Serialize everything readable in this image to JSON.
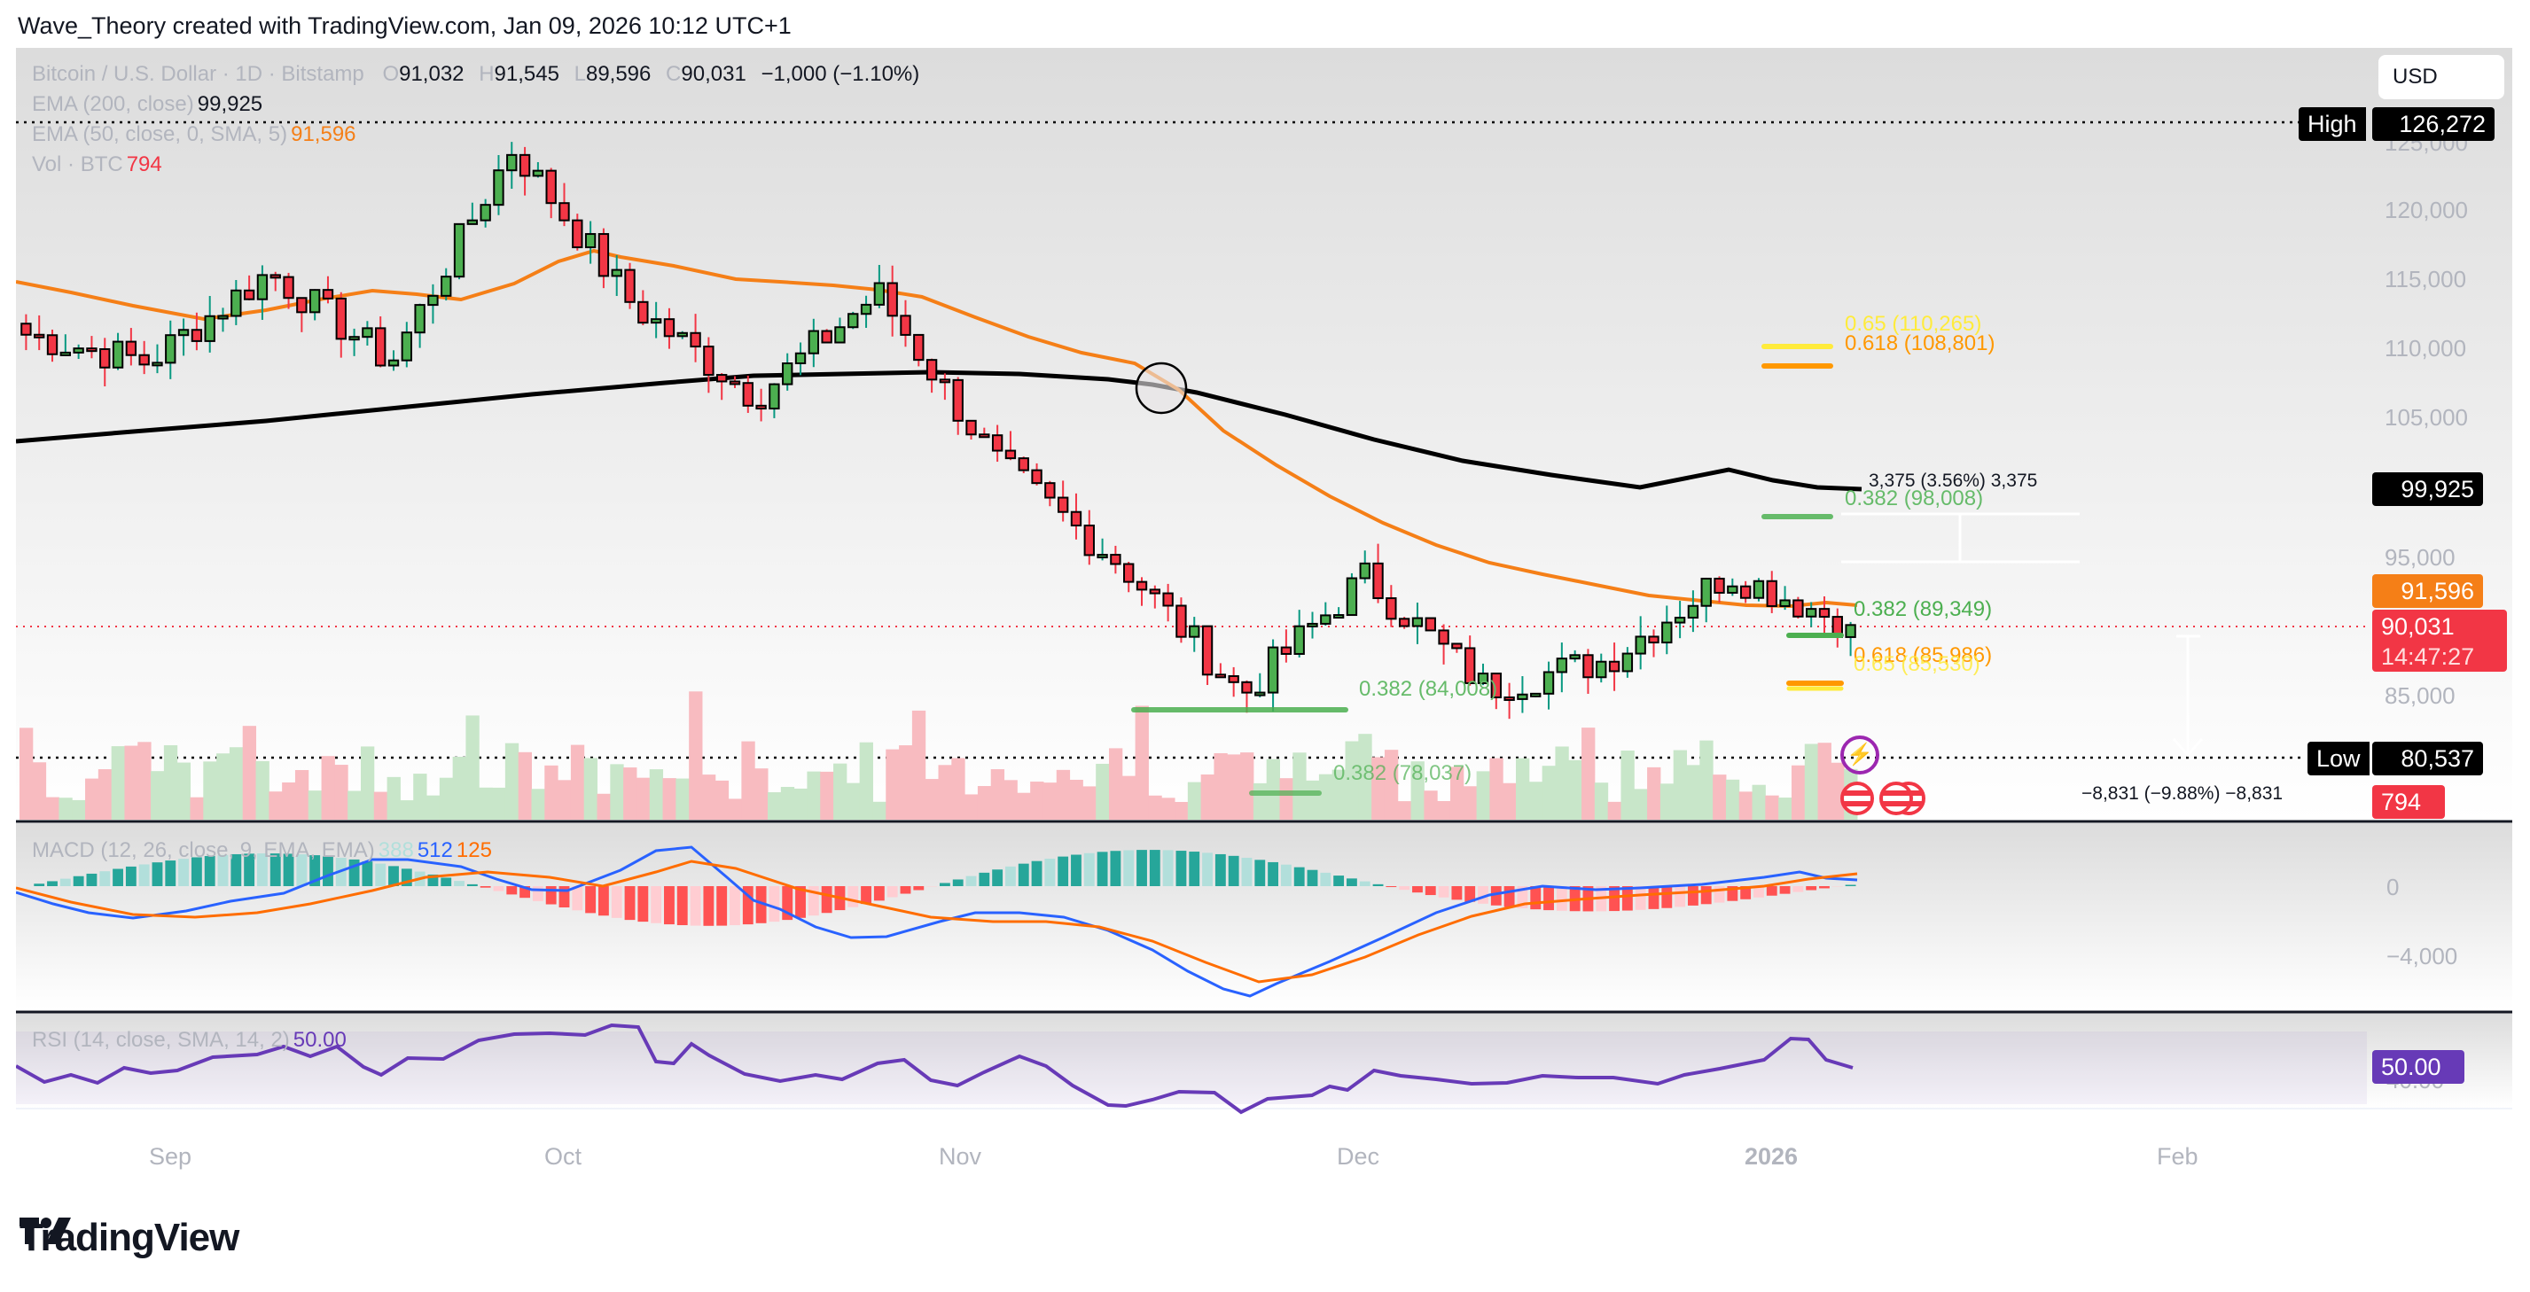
{
  "header": {
    "credit": "Wave_Theory created with TradingView.com, Jan 09, 2026 10:12 UTC+1"
  },
  "legend": {
    "symbol": "Bitcoin / U.S. Dollar · 1D · Bitstamp",
    "o_label": "O",
    "o": "91,032",
    "h_label": "H",
    "h": "91,545",
    "l_label": "L",
    "l": "89,596",
    "c_label": "C",
    "c": "90,031",
    "change": "−1,000 (−1.10%)",
    "ema200_label": "EMA (200, close)",
    "ema200": "99,925",
    "ema50_label": "EMA (50, close, 0, SMA, 5)",
    "ema50": "91,596",
    "vol_label": "Vol · BTC",
    "vol": "794",
    "macd_label": "MACD (12, 26, close, 9, EMA, EMA)",
    "macd_hist": "388",
    "macd_line": "512",
    "macd_signal": "125",
    "rsi_label": "RSI (14, close, SMA, 14, 2)",
    "rsi": "50.00"
  },
  "currency_button": "USD",
  "price_axis": {
    "ticks": [
      "125,000",
      "120,000",
      "115,000",
      "110,000",
      "105,000",
      "95,000",
      "85,000"
    ],
    "high_label": "High",
    "high_value": "126,272",
    "low_label": "Low",
    "low_value": "80,537",
    "ema200_tag": "99,925",
    "ema50_tag": "91,596",
    "last_price_tag": "90,031",
    "countdown": "14:47:27",
    "volume_tag": "794"
  },
  "macd_axis": {
    "ticks": [
      "0",
      "−4,000"
    ]
  },
  "rsi_axis": {
    "tag": "50.00",
    "tick": "40.00"
  },
  "time_axis": {
    "labels": [
      "Sep",
      "Oct",
      "Nov",
      "Dec",
      "2026",
      "Feb"
    ]
  },
  "annotations": {
    "fib_upper_065": "0.65 (110,265)",
    "fib_upper_0618": "0.618 (108,801)",
    "fib_upper_0382": "0.382 (98,008)",
    "fib_right_0382": "0.382 (89,349)",
    "fib_right_0618": "0.618 (85,986)",
    "fib_right_065": "0.65 (85,530)",
    "fib_left_0382a": "0.382 (84,008)",
    "fib_left_0382b": "0.382 (78,037)",
    "measure_up": "3,375 (3.56%) 3,375",
    "measure_down": "−8,831 (−9.88%) −8,831"
  },
  "colors": {
    "up": "#4caf50",
    "down": "#f23645",
    "ema50": "#f57f17",
    "ema200": "#000000",
    "macd": "#2962ff",
    "signal": "#ff6d00",
    "rsi": "#673ab7",
    "fib_green": "#66bb6a",
    "fib_orange": "#ff9800",
    "fib_yellow": "#ffeb3b"
  },
  "footer": {
    "brand": "TradingView"
  },
  "chart_data": {
    "type": "candlestick",
    "title": "Bitcoin / U.S. Dollar · 1D · Bitstamp",
    "xlabel": "",
    "ylabel": "USD",
    "ylim": [
      78000,
      127000
    ],
    "x_ticks": [
      "Sep",
      "Oct",
      "Nov",
      "Dec",
      "2026",
      "Feb"
    ],
    "last_ohlc": {
      "open": 91032,
      "high": 91545,
      "low": 89596,
      "close": 90031,
      "change": -1000,
      "change_pct": -1.1
    },
    "series": [
      {
        "name": "EMA 200",
        "last": 99925
      },
      {
        "name": "EMA 50",
        "last": 91596
      },
      {
        "name": "Volume BTC",
        "last": 794
      },
      {
        "name": "MACD hist",
        "last": 388
      },
      {
        "name": "MACD",
        "last": 512
      },
      {
        "name": "Signal",
        "last": 125
      },
      {
        "name": "RSI 14",
        "last": 50.0
      }
    ],
    "approx_closes": [
      {
        "date": "Aug 25",
        "close": 111000
      },
      {
        "date": "Sep 01",
        "close": 109000
      },
      {
        "date": "Sep 15",
        "close": 115500
      },
      {
        "date": "Sep 25",
        "close": 109000
      },
      {
        "date": "Oct 06",
        "close": 124500
      },
      {
        "date": "Oct 10",
        "close": 113000
      },
      {
        "date": "Oct 17",
        "close": 106500
      },
      {
        "date": "Oct 27",
        "close": 114000
      },
      {
        "date": "Nov 04",
        "close": 101500
      },
      {
        "date": "Nov 14",
        "close": 94500
      },
      {
        "date": "Nov 21",
        "close": 85000
      },
      {
        "date": "Dec 03",
        "close": 93500
      },
      {
        "date": "Dec 18",
        "close": 85500
      },
      {
        "date": "Dec 31",
        "close": 87500
      },
      {
        "date": "Jan 05",
        "close": 93800
      },
      {
        "date": "Jan 09",
        "close": 90031
      }
    ],
    "levels": {
      "all_time_high": 126272,
      "low": 80537
    },
    "fibonacci": [
      {
        "ratio": 0.65,
        "price": 110265
      },
      {
        "ratio": 0.618,
        "price": 108801
      },
      {
        "ratio": 0.382,
        "price": 98008
      },
      {
        "ratio": 0.382,
        "price": 89349
      },
      {
        "ratio": 0.618,
        "price": 85986
      },
      {
        "ratio": 0.65,
        "price": 85530
      },
      {
        "ratio": 0.382,
        "price": 84008
      },
      {
        "ratio": 0.382,
        "price": 78037
      }
    ],
    "legend_position": "top-left",
    "grid": false
  }
}
